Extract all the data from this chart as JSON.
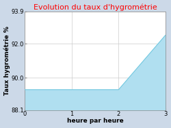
{
  "title": "Evolution du taux d'hygrométrie",
  "title_color": "#ff0000",
  "xlabel": "heure par heure",
  "ylabel": "Taux hygrométrie %",
  "x": [
    0,
    1,
    2,
    3
  ],
  "y": [
    89.3,
    89.3,
    89.3,
    92.5
  ],
  "ylim": [
    88.1,
    93.9
  ],
  "xlim": [
    0,
    3
  ],
  "yticks": [
    88.1,
    90.0,
    92.0,
    93.9
  ],
  "xticks": [
    0,
    1,
    2,
    3
  ],
  "line_color": "#72c8e0",
  "fill_color": "#b0dff0",
  "fill_alpha": 1.0,
  "fig_bg_color": "#ccd9e8",
  "plot_bg_color": "#ffffff",
  "grid_color": "#cccccc",
  "title_fontsize": 8,
  "label_fontsize": 6.5,
  "tick_fontsize": 6
}
